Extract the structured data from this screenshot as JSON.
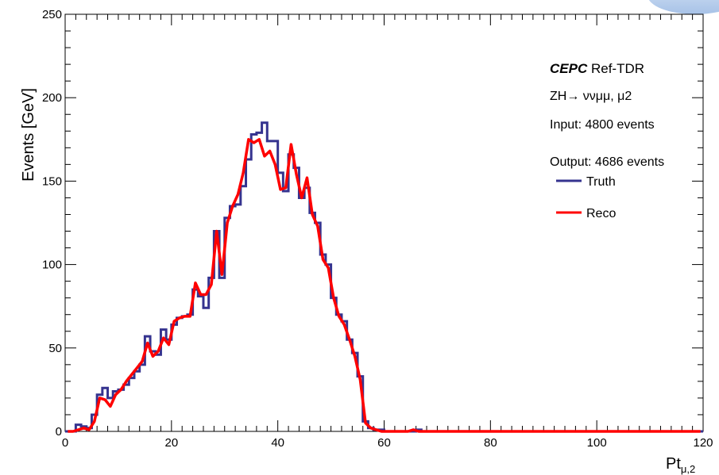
{
  "chart_data": {
    "type": "line",
    "title": "",
    "xlabel": "Pt",
    "xlabel_sub": "μ,2",
    "ylabel": "Events [GeV]",
    "xlim": [
      0,
      120
    ],
    "ylim": [
      0,
      250
    ],
    "xticks": [
      "0",
      "20",
      "40",
      "60",
      "80",
      "100",
      "120"
    ],
    "yticks": [
      "0",
      "50",
      "100",
      "150",
      "200",
      "250"
    ],
    "grid": false,
    "legend_position": "top-right",
    "annotations": {
      "experiment_bold": "CEPC",
      "experiment_rest": " Ref-TDR",
      "process": "ZH→ ννμμ, μ2",
      "input": "Input:  4800 events",
      "output": "Output: 4686 events"
    },
    "series": [
      {
        "name": "Truth",
        "color": "#35338f",
        "style": "step",
        "bin_width": 1,
        "x": [
          0,
          1,
          2,
          3,
          4,
          5,
          6,
          7,
          8,
          9,
          10,
          11,
          12,
          13,
          14,
          15,
          16,
          17,
          18,
          19,
          20,
          21,
          22,
          23,
          24,
          25,
          26,
          27,
          28,
          29,
          30,
          31,
          32,
          33,
          34,
          35,
          36,
          37,
          38,
          39,
          40,
          41,
          42,
          43,
          44,
          45,
          46,
          47,
          48,
          49,
          50,
          51,
          52,
          53,
          54,
          55,
          56,
          57,
          58,
          59,
          60,
          61,
          62,
          63,
          64,
          65,
          66,
          67,
          68,
          69,
          70,
          71,
          72,
          73,
          74,
          75,
          76,
          77,
          78,
          79,
          80,
          81,
          82,
          83,
          84,
          85,
          86,
          87,
          88,
          89,
          90,
          91,
          92,
          93,
          94,
          95,
          96,
          97,
          98,
          99,
          100,
          101,
          102,
          103,
          104,
          105,
          106,
          107,
          108,
          109,
          110,
          111,
          112,
          113,
          114,
          115,
          116,
          117,
          118,
          119
        ],
        "values": [
          0,
          0,
          4,
          3,
          2,
          10,
          22,
          26,
          20,
          24,
          25,
          28,
          32,
          36,
          40,
          57,
          48,
          46,
          61,
          55,
          64,
          68,
          69,
          70,
          85,
          81,
          74,
          92,
          120,
          92,
          128,
          135,
          136,
          147,
          163,
          178,
          179,
          185,
          174,
          174,
          155,
          144,
          166,
          158,
          140,
          146,
          131,
          125,
          106,
          100,
          80,
          70,
          66,
          55,
          47,
          33,
          6,
          2,
          1,
          1,
          0,
          0,
          0,
          0,
          0,
          0,
          1,
          0,
          0,
          0,
          0,
          0,
          0,
          0,
          0,
          0,
          0,
          0,
          0,
          0,
          0,
          0,
          0,
          0,
          0,
          0,
          0,
          0,
          0,
          0,
          0,
          0,
          0,
          0,
          0,
          0,
          0,
          0,
          0,
          0,
          0,
          0,
          0,
          0,
          0,
          0,
          0,
          0,
          0,
          0,
          0,
          0,
          0,
          0,
          0,
          0,
          0,
          0,
          0,
          0
        ]
      },
      {
        "name": "Reco",
        "color": "#ff0000",
        "style": "line",
        "x": [
          0.5,
          1.5,
          2.5,
          3.5,
          4.5,
          5.5,
          6.5,
          7.5,
          8.5,
          9.5,
          10.5,
          11.5,
          12.5,
          13.5,
          14.5,
          15.5,
          16.5,
          17.5,
          18.5,
          19.5,
          20.5,
          21.5,
          22.5,
          23.5,
          24.5,
          25.5,
          26.5,
          27.5,
          28.5,
          29.5,
          30.5,
          31.5,
          32.5,
          33.5,
          34.5,
          35.5,
          36.5,
          37.5,
          38.5,
          39.5,
          40.5,
          41.5,
          42.5,
          43.5,
          44.5,
          45.5,
          46.5,
          47.5,
          48.5,
          49.5,
          50.5,
          51.5,
          52.5,
          53.5,
          54.5,
          55.5,
          56.5,
          57.5,
          58.5,
          59.5,
          60.5,
          61.5,
          62.5,
          63.5,
          64.5,
          65.5,
          66.5,
          67.5,
          68.5,
          69.5,
          70.5,
          71.5,
          72.5,
          73.5,
          74.5,
          75.5,
          76.5,
          77.5,
          78.5,
          79.5,
          80.5,
          81.5,
          82.5,
          83.5,
          84.5,
          85.5,
          86.5,
          87.5,
          88.5,
          89.5,
          90.5,
          91.5,
          92.5,
          93.5,
          94.5,
          95.5,
          96.5,
          97.5,
          98.5,
          99.5,
          100.5,
          101.5,
          102.5,
          103.5,
          104.5,
          105.5,
          106.5,
          107.5,
          108.5,
          109.5,
          110.5,
          111.5,
          112.5,
          113.5,
          114.5,
          115.5,
          116.5,
          117.5,
          118.5,
          119.5
        ],
        "values": [
          0,
          0,
          1,
          2,
          1,
          6,
          20,
          19,
          15,
          22,
          25,
          30,
          34,
          38,
          42,
          53,
          45,
          48,
          56,
          52,
          66,
          68,
          69,
          69,
          89,
          82,
          82,
          88,
          120,
          94,
          125,
          135,
          142,
          155,
          175,
          173,
          175,
          165,
          168,
          160,
          145,
          146,
          172,
          154,
          140,
          152,
          130,
          123,
          103,
          98,
          80,
          69,
          64,
          55,
          45,
          31,
          5,
          2,
          1,
          0,
          0,
          0,
          0,
          0,
          0,
          1,
          0,
          0,
          0,
          0,
          0,
          0,
          0,
          0,
          0,
          0,
          0,
          0,
          0,
          0,
          0,
          0,
          0,
          0,
          0,
          0,
          0,
          0,
          0,
          0,
          0,
          0,
          0,
          0,
          0,
          0,
          0,
          0,
          0,
          0,
          0,
          0,
          0,
          0,
          0,
          0,
          0,
          0,
          0,
          0,
          0,
          0,
          0,
          0,
          0,
          0,
          0,
          0,
          0,
          0
        ]
      }
    ]
  }
}
